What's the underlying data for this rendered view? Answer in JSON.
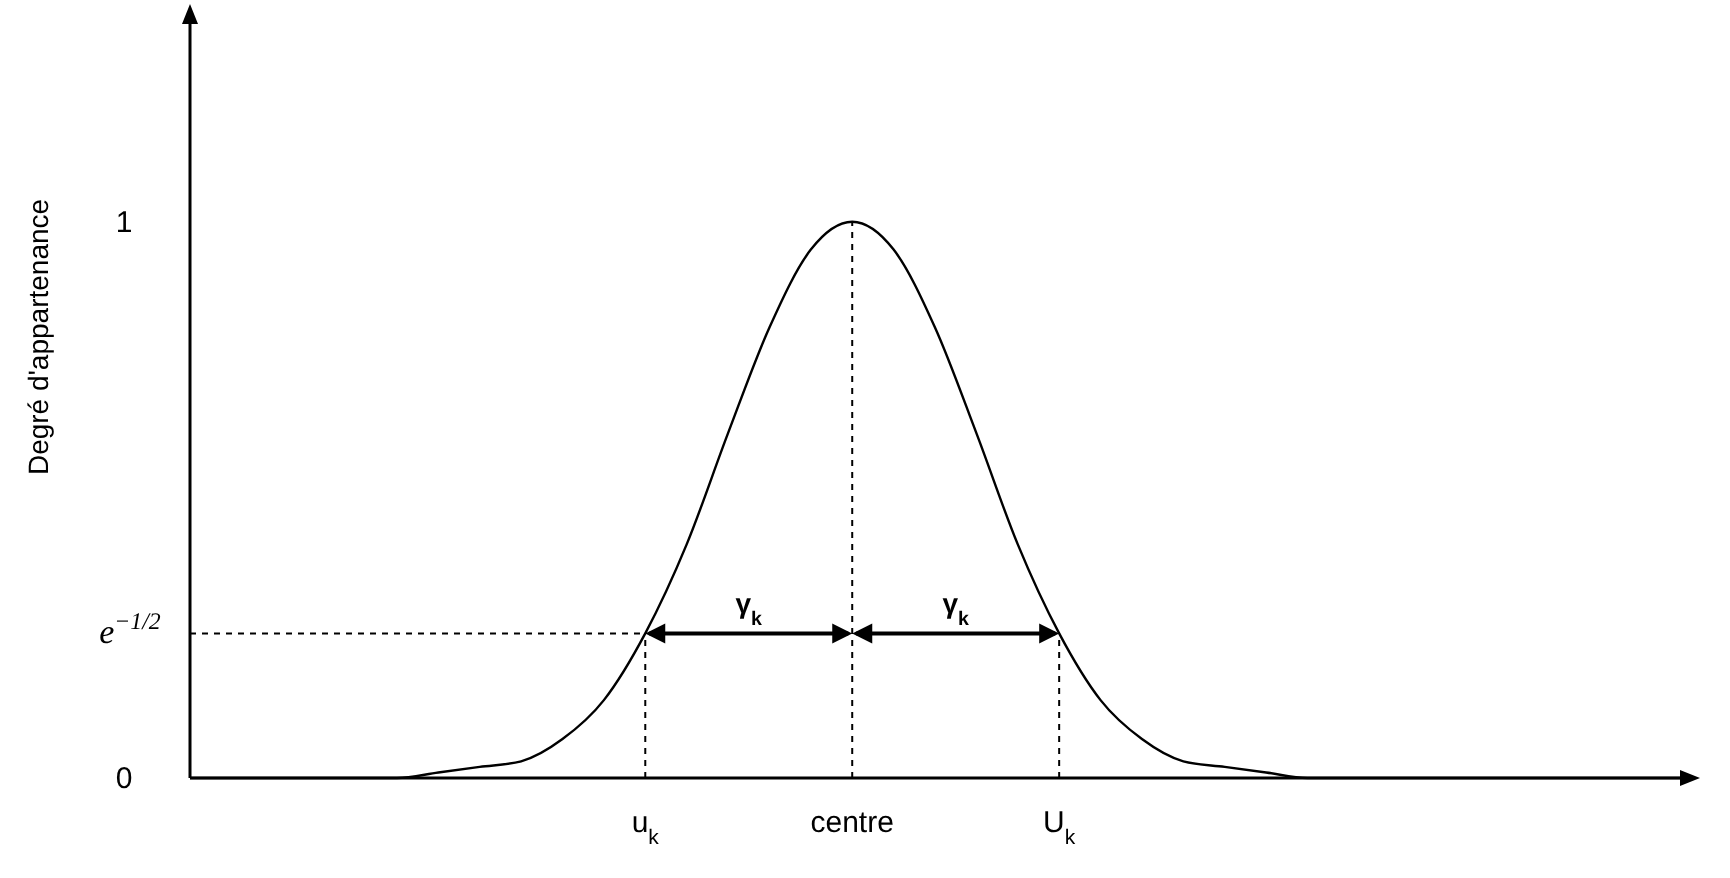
{
  "chart_data": {
    "type": "line",
    "ylabel": "Degré d'appartenance",
    "categories": [
      null,
      null,
      null,
      null,
      null,
      null,
      null,
      null,
      null,
      null,
      null,
      "u$_{k}$",
      null,
      null,
      null,
      null,
      "centre",
      null,
      null,
      null,
      null,
      "U$_{k}$",
      null,
      null,
      null,
      null,
      null,
      null,
      null,
      null,
      null,
      null,
      null,
      null,
      null,
      null,
      null
    ],
    "series": [
      {
        "color": "#000000",
        "values": [
          0,
          0,
          0,
          0,
          0,
          0,
          0.01,
          0.02,
          0.03,
          0.07,
          0.14,
          0.26,
          0.42,
          0.62,
          0.81,
          0.95,
          1,
          0.95,
          0.81,
          0.62,
          0.42,
          0.26,
          0.14,
          0.07,
          0.03,
          0.02,
          0.01,
          0,
          0,
          0,
          0,
          0,
          0,
          0,
          0,
          0,
          0
        ]
      }
    ],
    "ylim": [
      0,
      1.37
    ],
    "yticks": [
      0,
      {
        "value": 0.26,
        "label": "e$^{−1/2}$"
      },
      1
    ],
    "annotations": [
      "γ$_{k}$",
      "γ$_{k}$"
    ],
    "grid": "x",
    "marker": "none",
    "line_style": "solid"
  }
}
